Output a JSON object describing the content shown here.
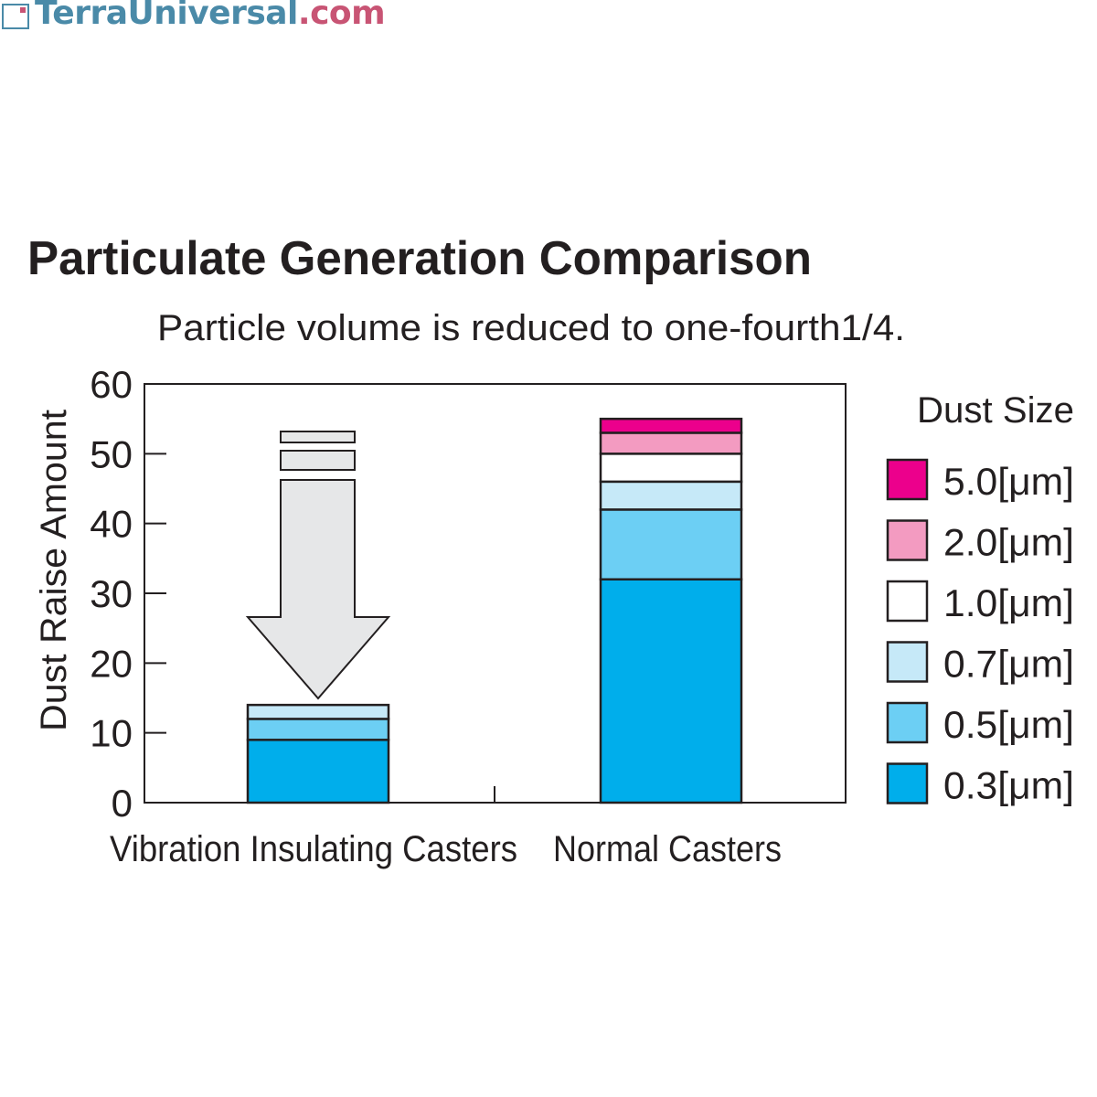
{
  "logo": {
    "brand": "TerraUniversal",
    "tld": ".com"
  },
  "chart_data": {
    "type": "bar",
    "stacked": true,
    "title": "Particulate Generation Comparison",
    "subtitle": "Particle volume is reduced to one-fourth1/4.",
    "ylabel": "Dust Raise Amount",
    "xlabel": "",
    "ylim": [
      0,
      60
    ],
    "yticks": [
      "0",
      "10",
      "20",
      "30",
      "40",
      "50",
      "60"
    ],
    "categories": [
      "Vibration Insulating Casters",
      "Normal Casters"
    ],
    "legend_title": "Dust Size",
    "legend_position": "right",
    "series": [
      {
        "name": "0.3[μm]",
        "color": "#00aeeb",
        "values": [
          9,
          32
        ]
      },
      {
        "name": "0.5[μm]",
        "color": "#6ccff4",
        "values": [
          3,
          10
        ]
      },
      {
        "name": "0.7[μm]",
        "color": "#c6e9f8",
        "values": [
          2,
          4
        ]
      },
      {
        "name": "1.0[μm]",
        "color": "#ffffff",
        "values": [
          0,
          4
        ]
      },
      {
        "name": "2.0[μm]",
        "color": "#f39bc1",
        "values": [
          0,
          3
        ]
      },
      {
        "name": "5.0[μm]",
        "color": "#ec008c",
        "values": [
          0,
          2
        ]
      }
    ],
    "annotation": "down-arrow indicating reduction"
  }
}
